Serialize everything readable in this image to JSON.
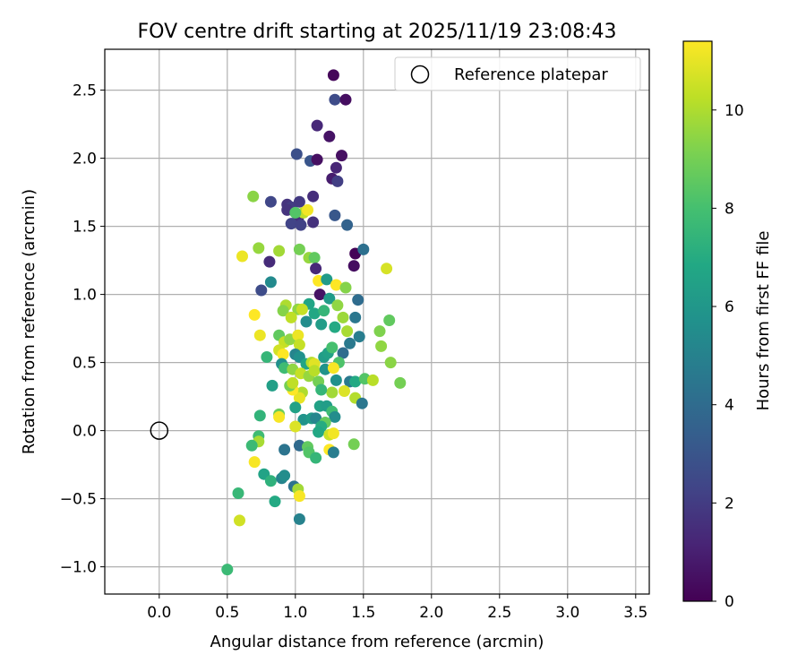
{
  "chart_data": {
    "type": "scatter",
    "title": "FOV centre drift starting at 2025/11/19 23:08:43",
    "xlabel": "Angular distance from reference (arcmin)",
    "ylabel": "Rotation from reference (arcmin)",
    "xlim": [
      -0.4,
      3.6
    ],
    "ylim": [
      -1.2,
      2.8
    ],
    "xticks": [
      0.0,
      0.5,
      1.0,
      1.5,
      2.0,
      2.5,
      3.0,
      3.5
    ],
    "xtick_labels": [
      "0.0",
      "0.5",
      "1.0",
      "1.5",
      "2.0",
      "2.5",
      "3.0",
      "3.5"
    ],
    "yticks": [
      -1.0,
      -0.5,
      0.0,
      0.5,
      1.0,
      1.5,
      2.0,
      2.5
    ],
    "ytick_labels": [
      "−1.0",
      "−0.5",
      "0.0",
      "0.5",
      "1.0",
      "1.5",
      "2.0",
      "2.5"
    ],
    "grid": true,
    "legend": {
      "location": "upper right",
      "label": "Reference platepar"
    },
    "reference_point": {
      "x": 0.0,
      "y": 0.0
    },
    "colorbar": {
      "label": "Hours from first FF file",
      "min": 0,
      "max": 11.4,
      "ticks": [
        0,
        2,
        4,
        6,
        8,
        10
      ],
      "tick_labels": [
        "0",
        "2",
        "4",
        "6",
        "8",
        "10"
      ],
      "colormap": "viridis"
    },
    "points": [
      [
        1.28,
        2.61,
        0.2
      ],
      [
        1.29,
        2.43,
        2.6
      ],
      [
        1.37,
        2.43,
        0.4
      ],
      [
        1.16,
        2.24,
        1.3
      ],
      [
        1.25,
        2.16,
        0.6
      ],
      [
        1.34,
        2.02,
        0.5
      ],
      [
        1.01,
        2.03,
        2.8
      ],
      [
        1.11,
        1.98,
        3.0
      ],
      [
        1.16,
        1.99,
        0.5
      ],
      [
        1.3,
        1.93,
        1.2
      ],
      [
        1.27,
        1.85,
        0.9
      ],
      [
        1.31,
        1.83,
        2.1
      ],
      [
        0.82,
        1.68,
        2.4
      ],
      [
        0.94,
        1.66,
        1.7
      ],
      [
        0.97,
        1.64,
        2.0
      ],
      [
        1.03,
        1.68,
        1.9
      ],
      [
        1.13,
        1.72,
        1.5
      ],
      [
        0.94,
        1.62,
        1.7
      ],
      [
        1.02,
        1.55,
        1.5
      ],
      [
        0.97,
        1.52,
        2.3
      ],
      [
        1.04,
        1.51,
        2.2
      ],
      [
        1.13,
        1.53,
        1.6
      ],
      [
        1.29,
        1.58,
        3.1
      ],
      [
        1.38,
        1.51,
        3.6
      ],
      [
        1.06,
        1.6,
        10.3
      ],
      [
        1.0,
        1.6,
        8.3
      ],
      [
        1.09,
        1.62,
        11.2
      ],
      [
        0.69,
        1.72,
        9.4
      ],
      [
        0.73,
        1.34,
        9.6
      ],
      [
        0.88,
        1.32,
        9.8
      ],
      [
        0.61,
        1.28,
        11.1
      ],
      [
        0.81,
        1.24,
        1.4
      ],
      [
        1.03,
        1.33,
        9.0
      ],
      [
        1.1,
        1.27,
        9.6
      ],
      [
        1.14,
        1.27,
        8.6
      ],
      [
        1.15,
        1.19,
        1.3
      ],
      [
        1.44,
        1.3,
        0.1
      ],
      [
        1.43,
        1.21,
        0.4
      ],
      [
        1.5,
        1.33,
        4.2
      ],
      [
        1.67,
        1.19,
        10.7
      ],
      [
        0.82,
        1.09,
        5.4
      ],
      [
        0.75,
        1.03,
        2.6
      ],
      [
        1.17,
        1.1,
        11.4
      ],
      [
        1.18,
        1.0,
        0.6
      ],
      [
        1.23,
        1.11,
        6.2
      ],
      [
        1.3,
        1.07,
        11.4
      ],
      [
        1.37,
        1.05,
        9.3
      ],
      [
        1.46,
        0.96,
        4.0
      ],
      [
        1.25,
        0.97,
        6.2
      ],
      [
        1.1,
        0.93,
        6.7
      ],
      [
        0.93,
        0.92,
        10.0
      ],
      [
        0.91,
        0.88,
        9.3
      ],
      [
        1.02,
        0.89,
        9.5
      ],
      [
        1.05,
        0.89,
        10.4
      ],
      [
        1.14,
        0.86,
        6.8
      ],
      [
        1.21,
        0.88,
        7.5
      ],
      [
        1.31,
        0.92,
        9.5
      ],
      [
        1.35,
        0.83,
        9.7
      ],
      [
        1.44,
        0.83,
        4.5
      ],
      [
        1.47,
        0.69,
        4.8
      ],
      [
        0.7,
        0.85,
        11.4
      ],
      [
        0.97,
        0.83,
        10.3
      ],
      [
        1.08,
        0.8,
        5.5
      ],
      [
        1.19,
        0.78,
        6.3
      ],
      [
        1.29,
        0.76,
        6.9
      ],
      [
        1.38,
        0.73,
        9.9
      ],
      [
        1.4,
        0.64,
        4.6
      ],
      [
        1.35,
        0.57,
        4.0
      ],
      [
        1.62,
        0.73,
        9.2
      ],
      [
        1.63,
        0.62,
        9.5
      ],
      [
        1.69,
        0.81,
        8.6
      ],
      [
        1.7,
        0.5,
        9.4
      ],
      [
        1.77,
        0.35,
        9.0
      ],
      [
        0.74,
        0.7,
        11.1
      ],
      [
        0.88,
        0.7,
        8.6
      ],
      [
        0.92,
        0.65,
        10.4
      ],
      [
        0.96,
        0.67,
        9.5
      ],
      [
        1.02,
        0.7,
        11.1
      ],
      [
        1.03,
        0.63,
        10.4
      ],
      [
        0.88,
        0.59,
        10.6
      ],
      [
        0.91,
        0.56,
        11.4
      ],
      [
        1.0,
        0.56,
        5.1
      ],
      [
        1.03,
        0.54,
        5.7
      ],
      [
        1.08,
        0.49,
        6.7
      ],
      [
        1.12,
        0.5,
        10.1
      ],
      [
        1.14,
        0.49,
        10.9
      ],
      [
        1.21,
        0.54,
        6.3
      ],
      [
        1.24,
        0.57,
        6.5
      ],
      [
        1.27,
        0.61,
        8.0
      ],
      [
        1.32,
        0.5,
        8.2
      ],
      [
        0.79,
        0.54,
        7.5
      ],
      [
        0.9,
        0.49,
        5.6
      ],
      [
        0.92,
        0.46,
        7.8
      ],
      [
        0.98,
        0.45,
        9.5
      ],
      [
        1.04,
        0.42,
        10.4
      ],
      [
        1.1,
        0.4,
        9.6
      ],
      [
        1.14,
        0.44,
        10.2
      ],
      [
        1.17,
        0.36,
        9.0
      ],
      [
        1.22,
        0.45,
        5.8
      ],
      [
        1.28,
        0.46,
        11.3
      ],
      [
        1.3,
        0.37,
        5.7
      ],
      [
        1.4,
        0.36,
        4.6
      ],
      [
        1.44,
        0.36,
        6.9
      ],
      [
        1.51,
        0.38,
        8.3
      ],
      [
        1.57,
        0.37,
        10.2
      ],
      [
        1.36,
        0.29,
        10.8
      ],
      [
        1.27,
        0.28,
        9.8
      ],
      [
        1.19,
        0.3,
        7.5
      ],
      [
        1.05,
        0.28,
        10.0
      ],
      [
        1.03,
        0.24,
        11.0
      ],
      [
        0.98,
        0.3,
        11.4
      ],
      [
        0.96,
        0.33,
        9.0
      ],
      [
        0.98,
        0.35,
        10.3
      ],
      [
        0.83,
        0.33,
        6.4
      ],
      [
        1.44,
        0.24,
        10.1
      ],
      [
        1.49,
        0.2,
        4.5
      ],
      [
        0.88,
        0.12,
        8.8
      ],
      [
        0.88,
        0.1,
        11.3
      ],
      [
        0.74,
        0.11,
        7.4
      ],
      [
        1.0,
        0.17,
        6.5
      ],
      [
        1.06,
        0.08,
        5.8
      ],
      [
        1.12,
        0.09,
        6.2
      ],
      [
        1.15,
        0.09,
        5.2
      ],
      [
        1.18,
        0.18,
        6.5
      ],
      [
        1.23,
        0.18,
        6.3
      ],
      [
        1.27,
        0.14,
        7.8
      ],
      [
        1.29,
        0.1,
        5.5
      ],
      [
        1.22,
        0.06,
        8.7
      ],
      [
        1.19,
        0.03,
        7.0
      ],
      [
        1.0,
        0.03,
        10.8
      ],
      [
        1.17,
        -0.01,
        6.8
      ],
      [
        1.25,
        -0.03,
        10.5
      ],
      [
        1.28,
        -0.02,
        11.2
      ],
      [
        1.43,
        -0.1,
        9.0
      ],
      [
        0.73,
        -0.04,
        7.8
      ],
      [
        0.73,
        -0.08,
        9.9
      ],
      [
        0.68,
        -0.11,
        7.7
      ],
      [
        0.92,
        -0.14,
        4.4
      ],
      [
        1.03,
        -0.11,
        3.9
      ],
      [
        1.09,
        -0.12,
        8.6
      ],
      [
        1.1,
        -0.16,
        8.3
      ],
      [
        1.25,
        -0.14,
        11.4
      ],
      [
        1.28,
        -0.16,
        4.8
      ],
      [
        1.15,
        -0.2,
        7.5
      ],
      [
        0.7,
        -0.23,
        11.3
      ],
      [
        0.77,
        -0.32,
        6.6
      ],
      [
        0.82,
        -0.37,
        7.3
      ],
      [
        0.9,
        -0.35,
        5.1
      ],
      [
        0.92,
        -0.33,
        5.5
      ],
      [
        0.99,
        -0.41,
        4.3
      ],
      [
        1.02,
        -0.43,
        9.8
      ],
      [
        1.03,
        -0.48,
        11.3
      ],
      [
        0.58,
        -0.46,
        7.6
      ],
      [
        0.85,
        -0.52,
        6.9
      ],
      [
        0.59,
        -0.66,
        10.6
      ],
      [
        1.03,
        -0.65,
        5.0
      ],
      [
        0.5,
        -1.02,
        7.7
      ]
    ]
  }
}
